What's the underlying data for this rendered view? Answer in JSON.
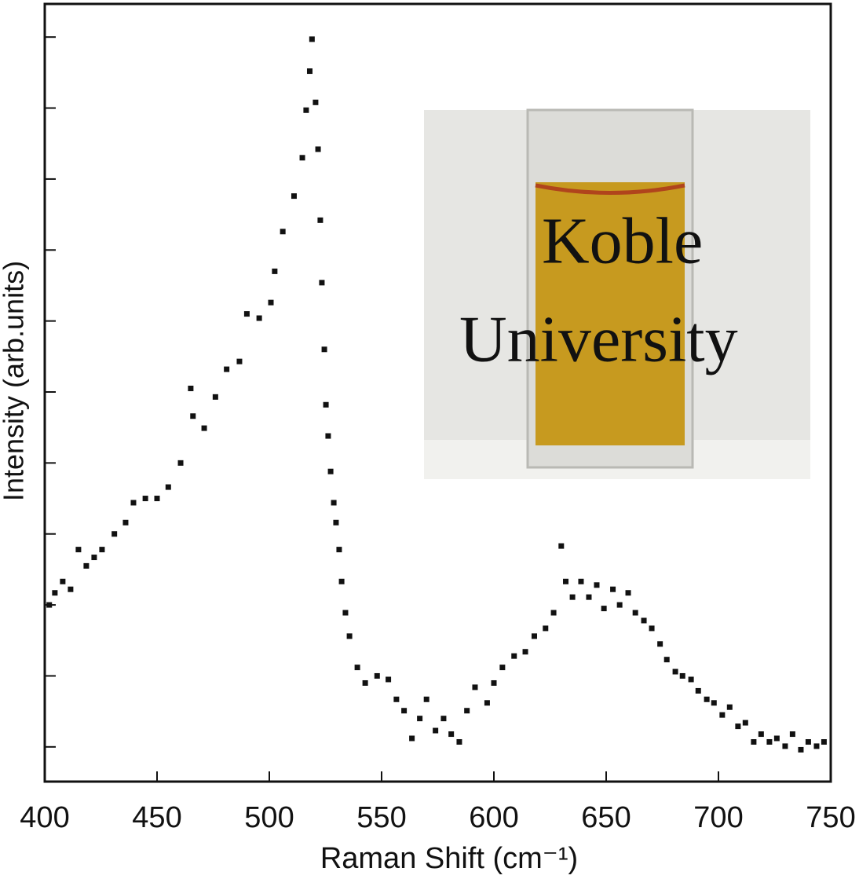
{
  "chart_data": {
    "type": "scatter",
    "xlabel": "Raman Shift (cm⁻¹)",
    "ylabel": "Intensity (arb.units)",
    "xlim": [
      400,
      750
    ],
    "xticks": [
      400,
      450,
      500,
      550,
      600,
      650,
      700,
      750
    ],
    "ylim": [
      -0.05,
      1.05
    ],
    "yticks": [
      0,
      0.1,
      0.2,
      0.3,
      0.4,
      0.5,
      0.6,
      0.7,
      0.8,
      0.9,
      1
    ],
    "ytick_labels": false,
    "color": "#111111",
    "inset_text": [
      "Koble",
      "University"
    ],
    "x": [
      402,
      404.5,
      408,
      411.5,
      415,
      418.5,
      422,
      425.5,
      431,
      436,
      439.5,
      444.8,
      450,
      455,
      460.5,
      465,
      466,
      471,
      476,
      481,
      486.7,
      490,
      495.5,
      500.7,
      502.4,
      506,
      511,
      514.7,
      516.4,
      518,
      519,
      520.6,
      521.7,
      522.7,
      523.4,
      524.5,
      525.2,
      526.2,
      527.3,
      528.7,
      529.7,
      531.1,
      532.2,
      533.9,
      535.7,
      539.2,
      542.7,
      548,
      553,
      556.6,
      560,
      563.5,
      567,
      570,
      574,
      577.6,
      581,
      584.6,
      588,
      591.6,
      597,
      600,
      603.8,
      609,
      614,
      618,
      623,
      626.6,
      630,
      632,
      635,
      638.8,
      642.3,
      645.8,
      649,
      653,
      656,
      659.8,
      663,
      666.8,
      670.3,
      674,
      677,
      680.8,
      684,
      687.8,
      691,
      694.8,
      698,
      701.7,
      705,
      708.7,
      712,
      715.7,
      719,
      722.7,
      726,
      729.7,
      733,
      736.7,
      740,
      743.7,
      747
    ],
    "values": [
      0.2,
      0.217,
      0.233,
      0.222,
      0.278,
      0.255,
      0.267,
      0.278,
      0.3,
      0.316,
      0.344,
      0.35,
      0.35,
      0.366,
      0.4,
      0.505,
      0.466,
      0.449,
      0.493,
      0.532,
      0.543,
      0.61,
      0.604,
      0.626,
      0.67,
      0.726,
      0.776,
      0.83,
      0.897,
      0.952,
      0.997,
      0.908,
      0.842,
      0.742,
      0.654,
      0.56,
      0.482,
      0.438,
      0.388,
      0.344,
      0.316,
      0.278,
      0.233,
      0.189,
      0.156,
      0.112,
      0.09,
      0.1,
      0.095,
      0.067,
      0.051,
      0.012,
      0.04,
      0.067,
      0.023,
      0.04,
      0.018,
      0.007,
      0.051,
      0.084,
      0.062,
      0.09,
      0.112,
      0.128,
      0.134,
      0.156,
      0.167,
      0.189,
      0.283,
      0.233,
      0.211,
      0.233,
      0.211,
      0.228,
      0.195,
      0.222,
      0.2,
      0.217,
      0.189,
      0.178,
      0.167,
      0.145,
      0.123,
      0.106,
      0.1,
      0.095,
      0.079,
      0.067,
      0.062,
      0.045,
      0.056,
      0.029,
      0.034,
      0.007,
      0.018,
      0.007,
      0.012,
      0.001,
      0.018,
      -0.004,
      0.007,
      0.001,
      0.007
    ]
  }
}
